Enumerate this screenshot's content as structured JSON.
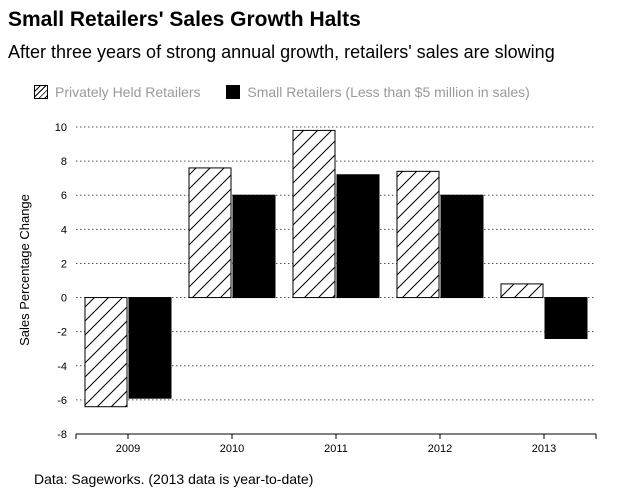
{
  "chart_data": {
    "type": "bar",
    "title": "Small Retailers' Sales Growth Halts",
    "subtitle": "After three years of strong annual growth, retailers' sales are slowing",
    "xlabel": "",
    "ylabel": "Sales Percentage Change",
    "categories": [
      "2009",
      "2010",
      "2011",
      "2012",
      "2013"
    ],
    "series": [
      {
        "name": "Privately Held Retailers",
        "values": [
          -6.4,
          7.6,
          9.8,
          7.4,
          0.8
        ],
        "pattern": "hatched"
      },
      {
        "name": "Small Retailers (Less than $5 million in sales)",
        "values": [
          -5.9,
          6.0,
          7.2,
          6.0,
          -2.4
        ],
        "pattern": "solid"
      }
    ],
    "ylim": [
      -8,
      10
    ],
    "yticks": [
      -8,
      -6,
      -4,
      -2,
      0,
      2,
      4,
      6,
      8,
      10
    ],
    "grid": true,
    "legend": "top-left",
    "source": "Data: Sageworks. (2013 data is year-to-date)"
  },
  "colors": {
    "bar": "#000000",
    "legend_text": "#9a9a9a",
    "grid": "#555555"
  }
}
